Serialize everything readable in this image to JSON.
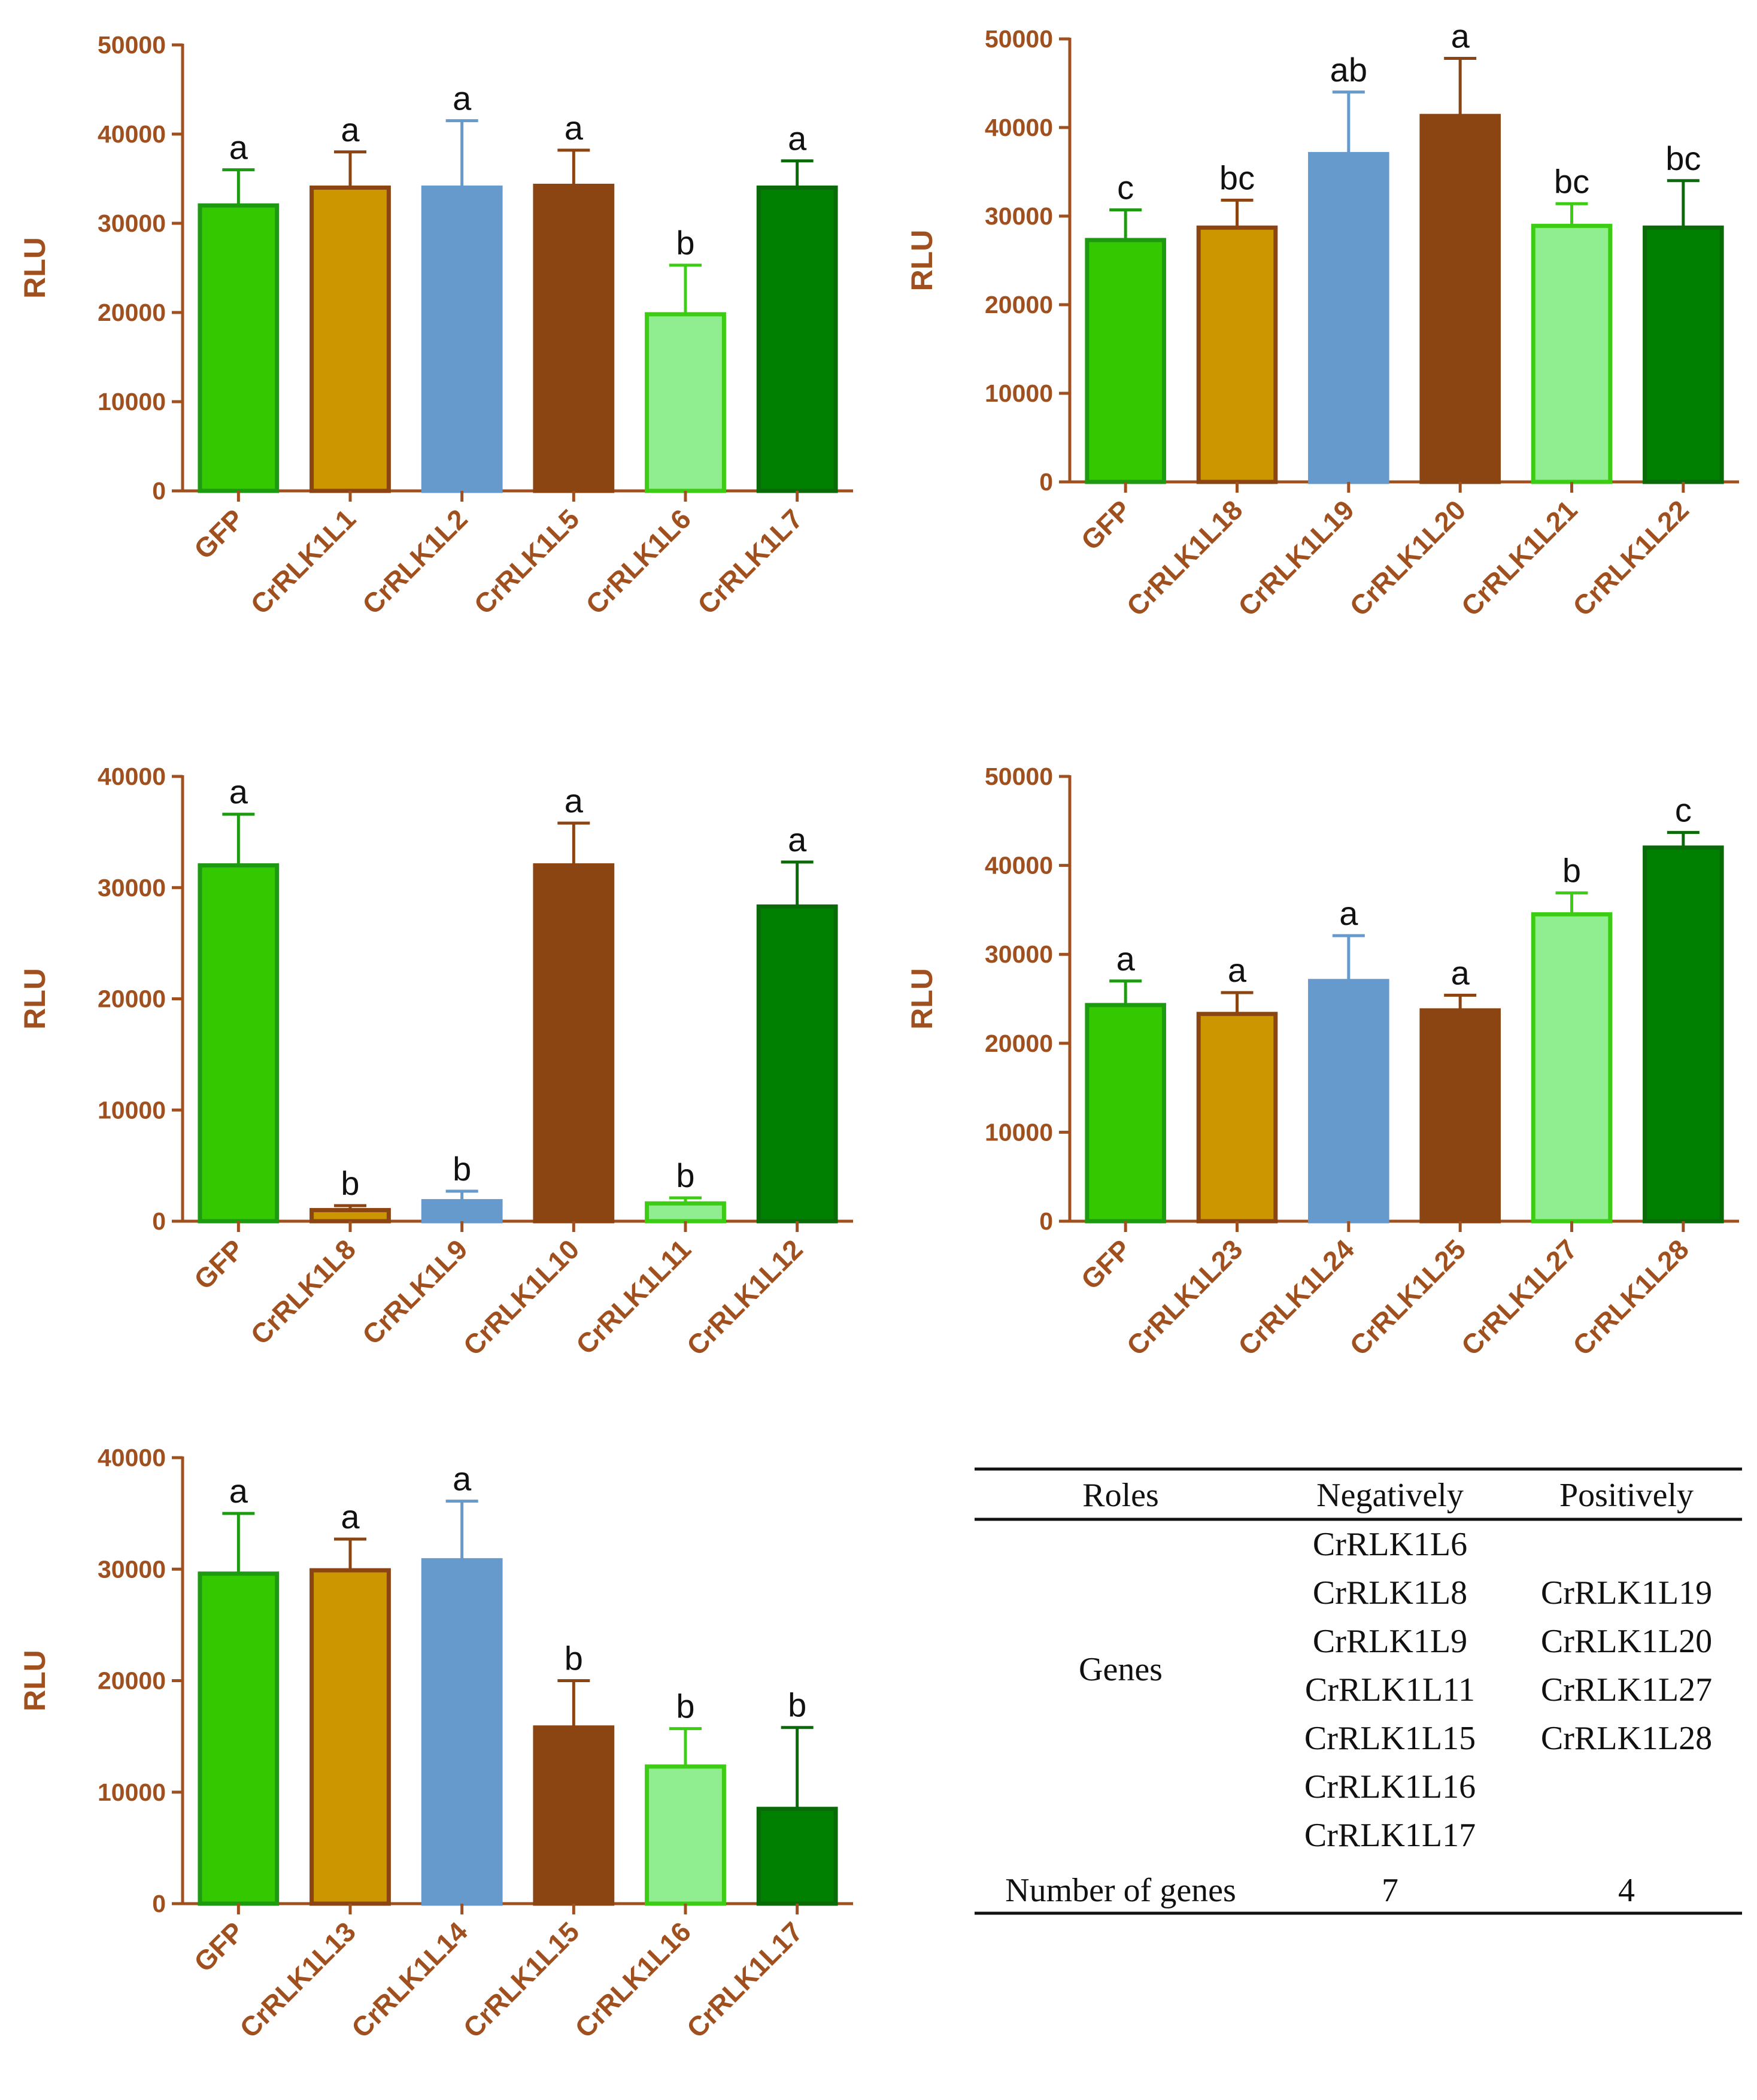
{
  "colors": {
    "axis": "#a0501e",
    "fills": [
      "#33c800",
      "#cc9600",
      "#6699cc",
      "#8b4513",
      "#90ee90",
      "#008000"
    ],
    "borders": [
      "#1e9a12",
      "#8b4513",
      "#6699cc",
      "#8b4513",
      "#3ccc14",
      "#0a6a0a"
    ]
  },
  "chart_data": [
    {
      "type": "bar",
      "position": "top-left",
      "ylabel": "RLU",
      "ylim": [
        0,
        50000
      ],
      "yticks": [
        "0",
        "10000",
        "20000",
        "30000",
        "40000",
        "50000"
      ],
      "categories": [
        "GFP",
        "CrRLK1L1",
        "CrRLK1L2",
        "CrRLK1L5",
        "CrRLK1L6",
        "CrRLK1L7"
      ],
      "values": [
        32000,
        34000,
        34000,
        34200,
        19800,
        34000
      ],
      "errors": [
        4000,
        4000,
        7500,
        4000,
        5500,
        3000
      ],
      "labels": [
        "a",
        "a",
        "a",
        "a",
        "b",
        "a"
      ]
    },
    {
      "type": "bar",
      "position": "top-right",
      "ylabel": "RLU",
      "ylim": [
        0,
        50000
      ],
      "yticks": [
        "0",
        "10000",
        "20000",
        "30000",
        "40000",
        "50000"
      ],
      "categories": [
        "GFP",
        "CrRLK1L18",
        "CrRLK1L19",
        "CrRLK1L20",
        "CrRLK1L21",
        "CrRLK1L22"
      ],
      "values": [
        27300,
        28700,
        37000,
        41300,
        28900,
        28700
      ],
      "errors": [
        3400,
        3100,
        7000,
        6500,
        2500,
        5300
      ],
      "labels": [
        "c",
        "bc",
        "ab",
        "a",
        "bc",
        "bc"
      ]
    },
    {
      "type": "bar",
      "position": "middle-left",
      "ylabel": "RLU",
      "ylim": [
        0,
        40000
      ],
      "yticks": [
        "0",
        "10000",
        "20000",
        "30000",
        "40000"
      ],
      "categories": [
        "GFP",
        "CrRLK1L8",
        "CrRLK1L9",
        "CrRLK1L10",
        "CrRLK1L11",
        "CrRLK1L12"
      ],
      "values": [
        32000,
        1000,
        1800,
        32000,
        1600,
        28300
      ],
      "errors": [
        4600,
        400,
        900,
        3800,
        500,
        4000
      ],
      "labels": [
        "a",
        "b",
        "b",
        "a",
        "b",
        "a"
      ]
    },
    {
      "type": "bar",
      "position": "middle-right",
      "ylabel": "RLU",
      "ylim": [
        0,
        50000
      ],
      "yticks": [
        "0",
        "10000",
        "20000",
        "30000",
        "40000",
        "50000"
      ],
      "categories": [
        "GFP",
        "CrRLK1L23",
        "CrRLK1L24",
        "CrRLK1L25",
        "CrRLK1L27",
        "CrRLK1L28"
      ],
      "values": [
        24300,
        23300,
        27000,
        23700,
        34500,
        42000
      ],
      "errors": [
        2700,
        2400,
        5100,
        1700,
        2400,
        1700
      ],
      "labels": [
        "a",
        "a",
        "a",
        "a",
        "b",
        "c"
      ]
    },
    {
      "type": "bar",
      "position": "bottom-left",
      "ylabel": "RLU",
      "ylim": [
        0,
        40000
      ],
      "yticks": [
        "0",
        "10000",
        "20000",
        "30000",
        "40000"
      ],
      "categories": [
        "GFP",
        "CrRLK1L13",
        "CrRLK1L14",
        "CrRLK1L15",
        "CrRLK1L16",
        "CrRLK1L17"
      ],
      "values": [
        29600,
        29900,
        30800,
        15800,
        12300,
        8500
      ],
      "errors": [
        5400,
        2800,
        5300,
        4200,
        3400,
        7300
      ],
      "labels": [
        "a",
        "a",
        "a",
        "b",
        "b",
        "b"
      ]
    }
  ],
  "table": {
    "headers": [
      "Roles",
      "Negatively",
      "Positively"
    ],
    "row_label": "Genes",
    "negatively": [
      "CrRLK1L6",
      "CrRLK1L8",
      "CrRLK1L9",
      "CrRLK1L11",
      "CrRLK1L15",
      "CrRLK1L16",
      "CrRLK1L17"
    ],
    "positively": [
      "CrRLK1L19",
      "CrRLK1L20",
      "CrRLK1L27",
      "CrRLK1L28"
    ],
    "count_label": "Number of genes",
    "count_negative": "7",
    "count_positive": "4"
  }
}
